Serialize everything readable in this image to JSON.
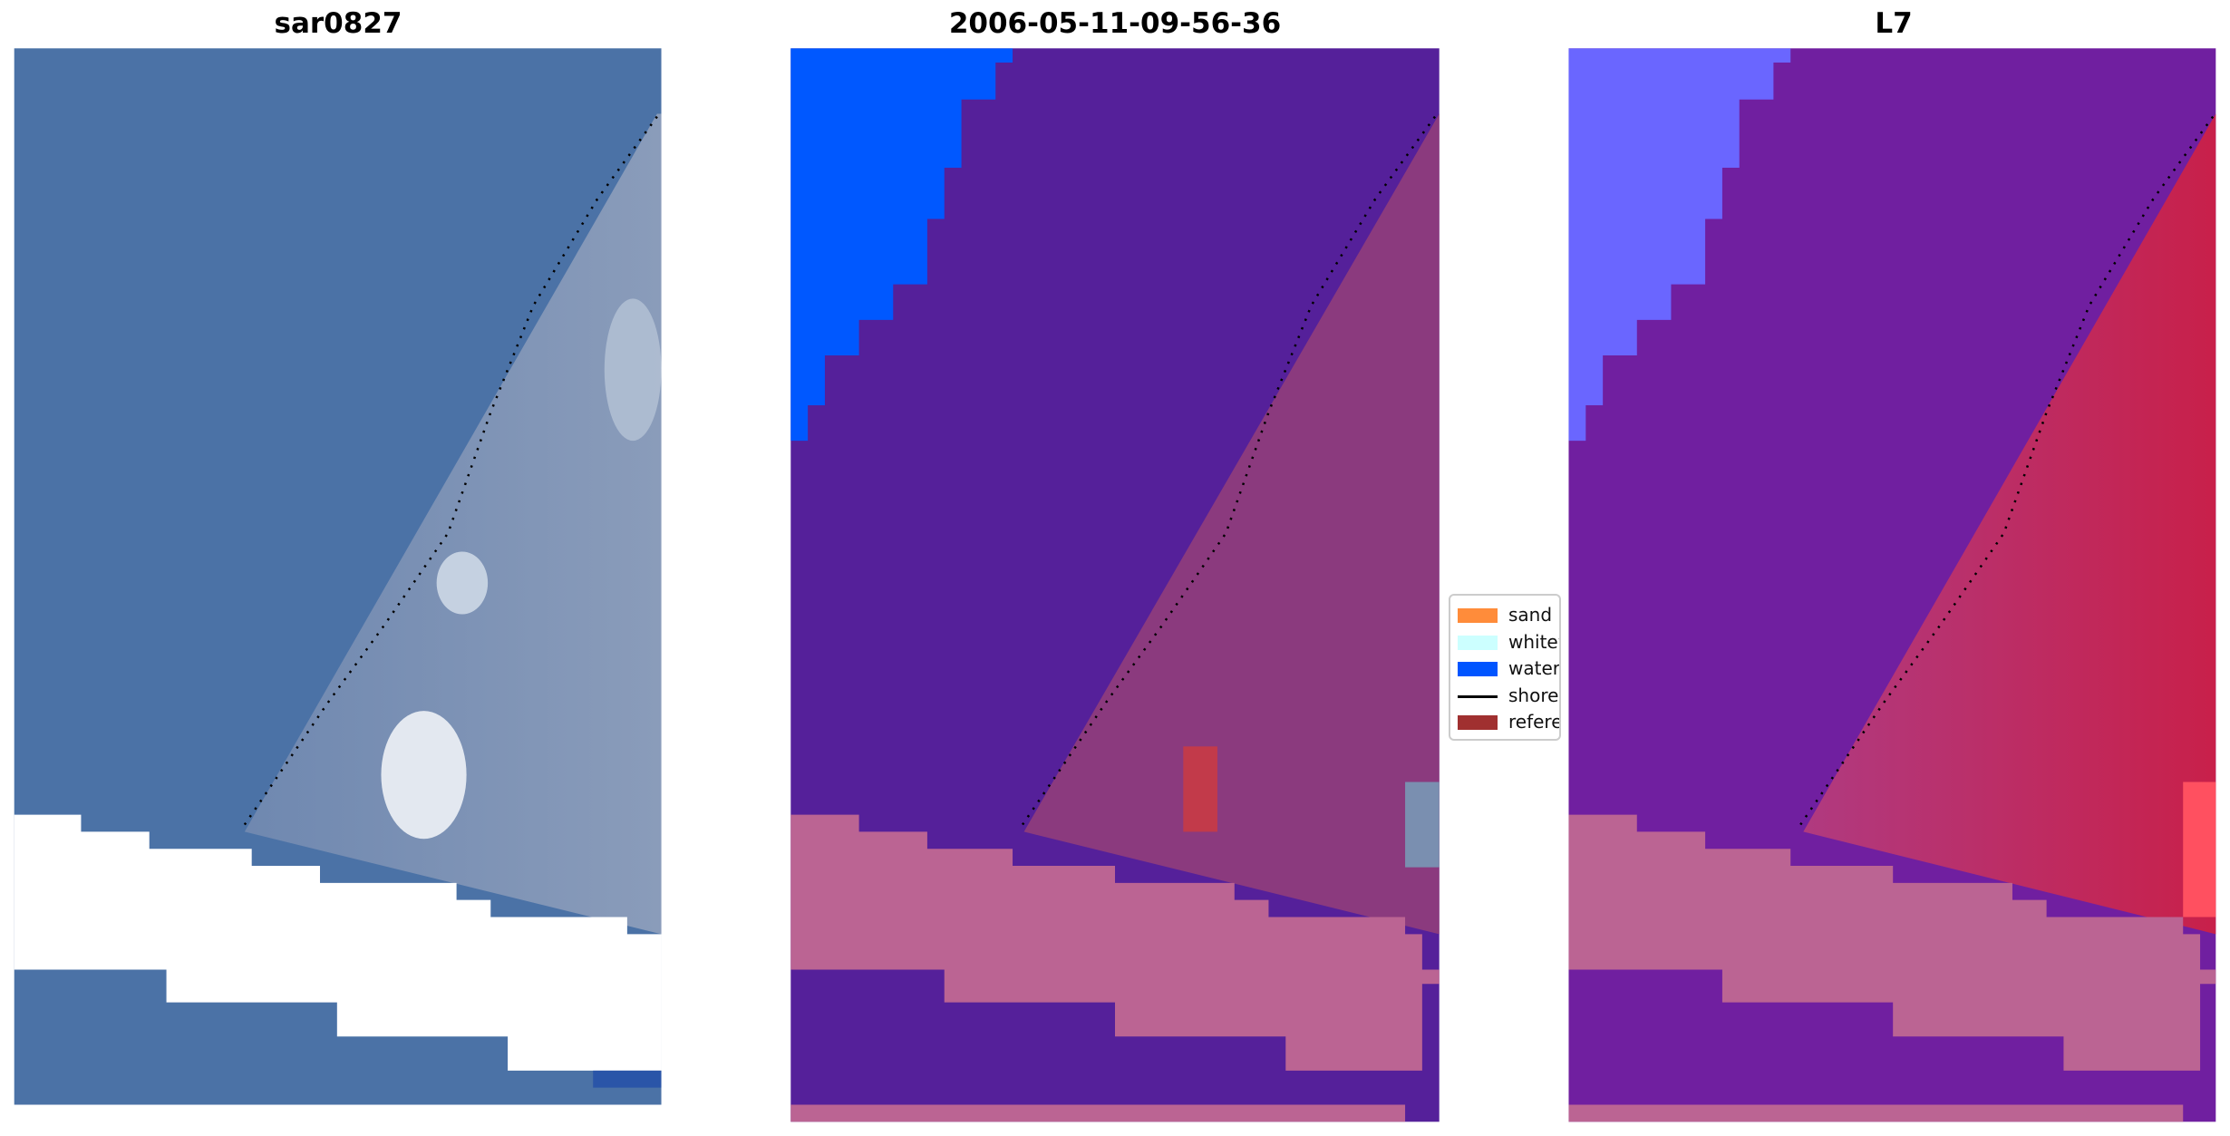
{
  "chart_data": {
    "type": "image-panels",
    "panels": [
      {
        "title": "sar0827"
      },
      {
        "title": "2006-05-11-09-56-36"
      },
      {
        "title": "L7"
      }
    ],
    "legend": {
      "placement": "center",
      "items": [
        {
          "label": "sand",
          "color": "#ff8c3a",
          "kind": "patch"
        },
        {
          "label": "whitew",
          "color": "#ccffff",
          "kind": "patch"
        },
        {
          "label": "water",
          "color": "#0055ff",
          "kind": "patch"
        },
        {
          "label": "shorel",
          "color": "#000000",
          "kind": "line"
        },
        {
          "label": "referen",
          "color": "#a03030",
          "kind": "patch"
        }
      ]
    },
    "axes": "off"
  }
}
